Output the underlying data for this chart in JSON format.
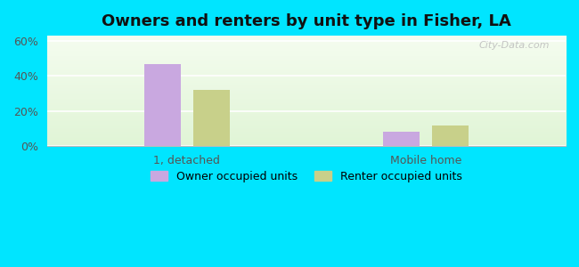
{
  "title": "Owners and renters by unit type in Fisher, LA",
  "categories": [
    "1, detached",
    "Mobile home"
  ],
  "owner_values": [
    47,
    8
  ],
  "renter_values": [
    32,
    12
  ],
  "owner_color": "#c9a8e0",
  "renter_color": "#c8d08a",
  "owner_label": "Owner occupied units",
  "renter_label": "Renter occupied units",
  "yticks": [
    0,
    20,
    40,
    60
  ],
  "ylim": [
    0,
    63
  ],
  "background_color_top": "#f0f8ec",
  "background_color_bottom": "#e0f0d0",
  "outer_background": "#00e5ff",
  "bar_width": 0.07,
  "group_positions": [
    0.27,
    0.73
  ],
  "bar_gap": 0.08,
  "xlim": [
    0,
    1
  ],
  "watermark": "City-Data.com"
}
